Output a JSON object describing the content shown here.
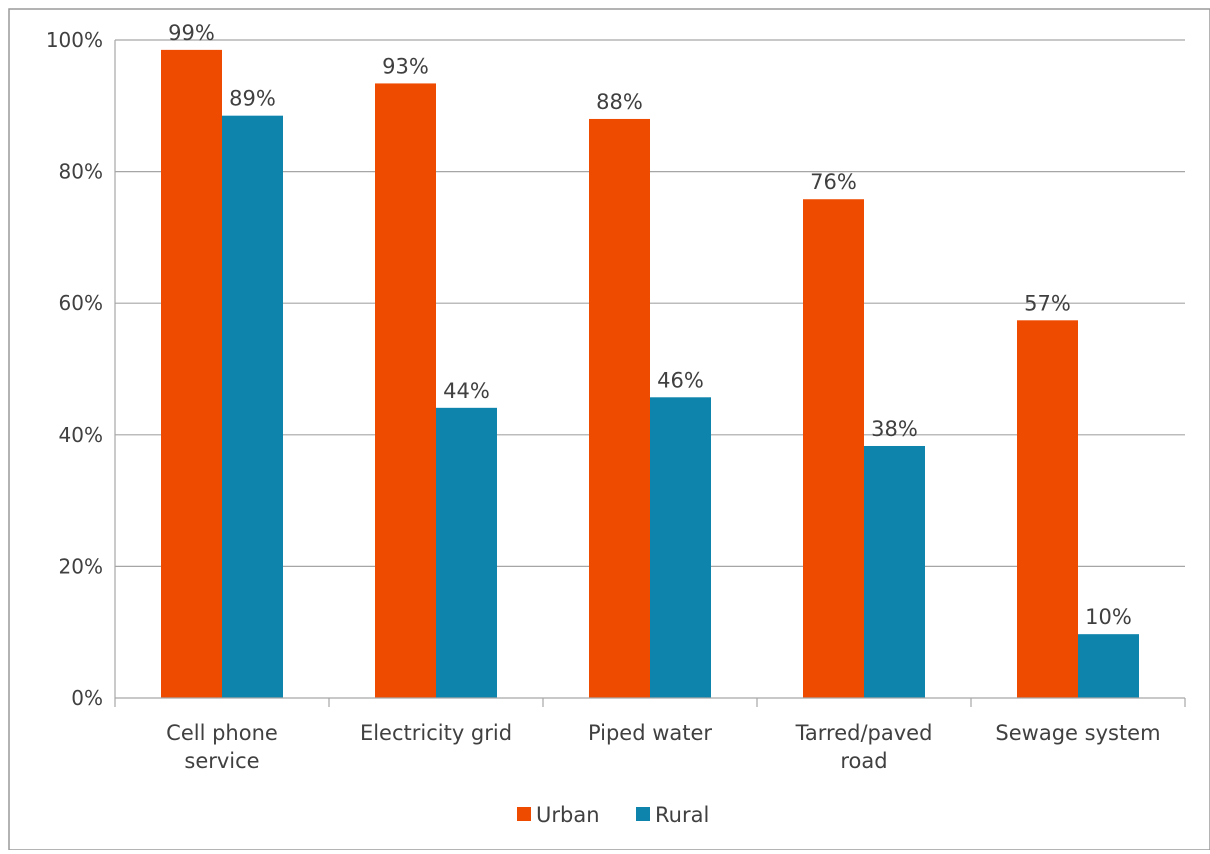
{
  "chart_data": {
    "type": "bar",
    "categories": [
      [
        "Cell phone",
        "service"
      ],
      [
        "Electricity grid"
      ],
      [
        "Piped water"
      ],
      [
        "Tarred/paved",
        "road"
      ],
      [
        "Sewage system"
      ]
    ],
    "series": [
      {
        "name": "Urban",
        "color": "#EE4B00",
        "values": [
          98.5,
          93.4,
          88.0,
          75.8,
          57.4
        ],
        "labels": [
          "99%",
          "93%",
          "88%",
          "76%",
          "57%"
        ]
      },
      {
        "name": "Rural",
        "color": "#0E84AC",
        "values": [
          88.5,
          44.1,
          45.7,
          38.3,
          9.7
        ],
        "labels": [
          "89%",
          "44%",
          "46%",
          "38%",
          "10%"
        ]
      }
    ],
    "yticks": [
      0,
      20,
      40,
      60,
      80,
      100
    ],
    "ytick_labels": [
      "0%",
      "20%",
      "40%",
      "60%",
      "80%",
      "100%"
    ],
    "ylim": [
      0,
      100
    ],
    "grid": true,
    "legend_position": "bottom"
  }
}
